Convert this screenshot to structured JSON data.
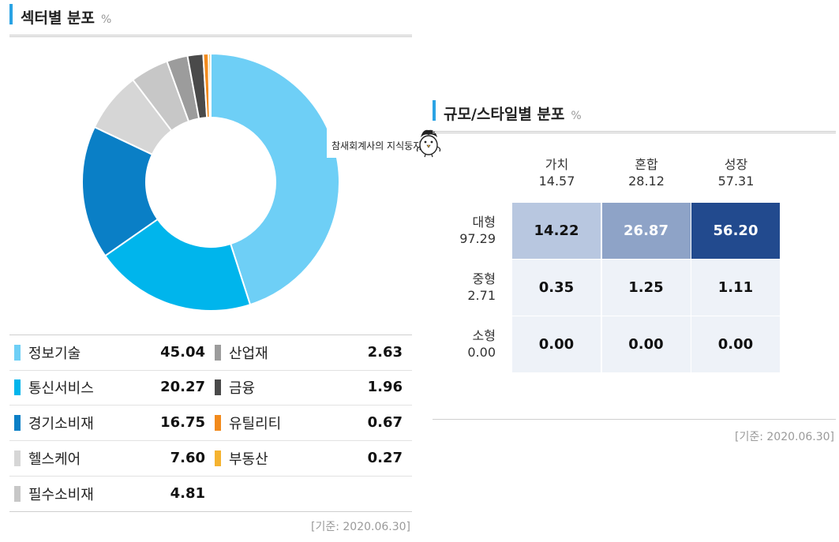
{
  "sector": {
    "title": "섹터별 분포",
    "unit": "%",
    "footer": "[기준: 2020.06.30]"
  },
  "style": {
    "title": "규모/스타일별 분포",
    "unit": "%",
    "footer": "[기준: 2020.06.30]"
  },
  "watermark": {
    "text": "참새회계사의 지식둥지"
  },
  "colors": {
    "accent": "#2aa3e4"
  },
  "chart_data": [
    {
      "type": "pie",
      "donut": true,
      "title": "섹터별 분포",
      "unit": "%",
      "categories": [
        "정보기술",
        "통신서비스",
        "경기소비재",
        "헬스케어",
        "필수소비재",
        "산업재",
        "금융",
        "유틸리티",
        "부동산"
      ],
      "values": [
        45.04,
        20.27,
        16.75,
        7.6,
        4.81,
        2.63,
        1.96,
        0.67,
        0.27
      ],
      "display_values": [
        "45.04",
        "20.27",
        "16.75",
        "7.60",
        "4.81",
        "2.63",
        "1.96",
        "0.67",
        "0.27"
      ],
      "colors": [
        "#6ecff6",
        "#00b5ec",
        "#0a7fc6",
        "#d6d6d6",
        "#c7c7c7",
        "#9c9c9c",
        "#4a4a4a",
        "#f28a1c",
        "#f5b330"
      ],
      "legend": "bottom-table"
    },
    {
      "type": "heatmap",
      "title": "규모/스타일별 분포",
      "unit": "%",
      "columns": [
        {
          "name": "가치",
          "total": "14.57"
        },
        {
          "name": "혼합",
          "total": "28.12"
        },
        {
          "name": "성장",
          "total": "57.31"
        }
      ],
      "rows": [
        {
          "name": "대형",
          "total": "97.29",
          "values": [
            "14.22",
            "26.87",
            "56.20"
          ],
          "colors": [
            "#b8c7e0",
            "#8ea3c7",
            "#224a8e"
          ],
          "text_colors": [
            "#111111",
            "#ffffff",
            "#ffffff"
          ]
        },
        {
          "name": "중형",
          "total": "2.71",
          "values": [
            "0.35",
            "1.25",
            "1.11"
          ],
          "colors": [
            "#eef2f8",
            "#eef2f8",
            "#eef2f8"
          ],
          "text_colors": [
            "#111111",
            "#111111",
            "#111111"
          ]
        },
        {
          "name": "소형",
          "total": "0.00",
          "values": [
            "0.00",
            "0.00",
            "0.00"
          ],
          "colors": [
            "#eef2f8",
            "#eef2f8",
            "#eef2f8"
          ],
          "text_colors": [
            "#111111",
            "#111111",
            "#111111"
          ]
        }
      ]
    }
  ]
}
